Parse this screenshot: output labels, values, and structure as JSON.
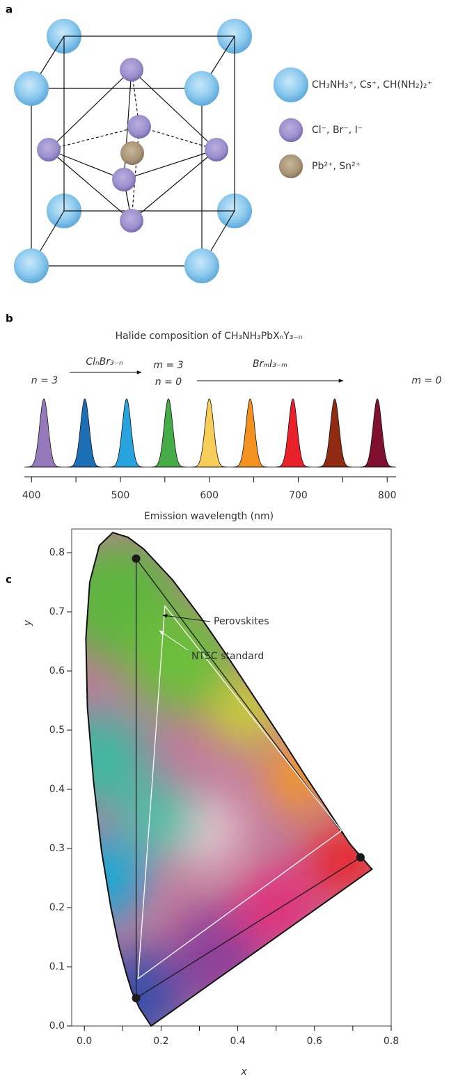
{
  "panel_labels": [
    "a",
    "b",
    "c"
  ],
  "diagram": {
    "legend": [
      {
        "label": "CH₃NH₃⁺, Cs⁺, CH(NH₂)₂⁺",
        "color": "#8ecbee"
      },
      {
        "label": "Cl⁻, Br⁻, I⁻",
        "color": "#9b8fcc"
      },
      {
        "label": "Pb²⁺, Sn²⁺",
        "color": "#a89478"
      }
    ]
  },
  "chart_data": [
    {
      "type": "spectrum",
      "title": "Halide composition of CH₃NH₃PbXₙY₃₋ₙ",
      "x_label": "Emission wavelength (nm)",
      "annotations": [
        "n = 3",
        "ClₙBr₃₋ₙ",
        "m = 3",
        "n = 0",
        "BrₘI₃₋ₘ",
        "m = 0"
      ],
      "peaks": [
        414,
        460,
        507,
        554,
        600,
        646,
        694,
        741,
        789
      ],
      "colors": [
        "#9579bb",
        "#1d6fb5",
        "#29a3de",
        "#45ab47",
        "#f6cd58",
        "#f39221",
        "#e8202a",
        "#8e2b12",
        "#7f1030"
      ],
      "xlim": [
        392,
        810
      ],
      "xticks": [
        400,
        500,
        600,
        700,
        800
      ],
      "minor_xticks": [
        450,
        550,
        650,
        750
      ]
    },
    {
      "type": "cie",
      "x_label": "x",
      "y_label": "y",
      "xlim": [
        -0.033,
        0.8
      ],
      "ylim": [
        0,
        0.84
      ],
      "xticks": [
        {
          "value": 0,
          "label": "0.0"
        },
        0.2,
        0.4,
        0.6,
        0.8
      ],
      "minor_xticks": [
        0.1,
        0.3,
        0.5,
        0.7
      ],
      "yticks": [
        {
          "value": 0,
          "label": "0.0"
        },
        0.1,
        0.2,
        0.3,
        0.4,
        0.5,
        0.6,
        0.7,
        0.8
      ],
      "series": [
        {
          "name": "Perovskites",
          "color": "#1a1a1a",
          "x": [
            0.135,
            0.72,
            0.135
          ],
          "y": [
            0.79,
            0.285,
            0.047
          ]
        },
        {
          "name": "NTSC standard",
          "color": "#ffffff",
          "x": [
            0.21,
            0.67,
            0.14
          ],
          "y": [
            0.71,
            0.33,
            0.08
          ]
        }
      ],
      "locus": {
        "x": [
          0.174,
          0.144,
          0.124,
          0.11,
          0.091,
          0.069,
          0.045,
          0.024,
          0.008,
          0.004,
          0.014,
          0.039,
          0.074,
          0.114,
          0.155,
          0.23,
          0.302,
          0.373,
          0.444,
          0.513,
          0.575,
          0.627,
          0.692,
          0.75
        ],
        "y": [
          0.0,
          0.03,
          0.058,
          0.087,
          0.133,
          0.201,
          0.295,
          0.413,
          0.538,
          0.655,
          0.75,
          0.812,
          0.834,
          0.826,
          0.806,
          0.754,
          0.692,
          0.625,
          0.555,
          0.487,
          0.424,
          0.373,
          0.308,
          0.265
        ]
      }
    }
  ]
}
